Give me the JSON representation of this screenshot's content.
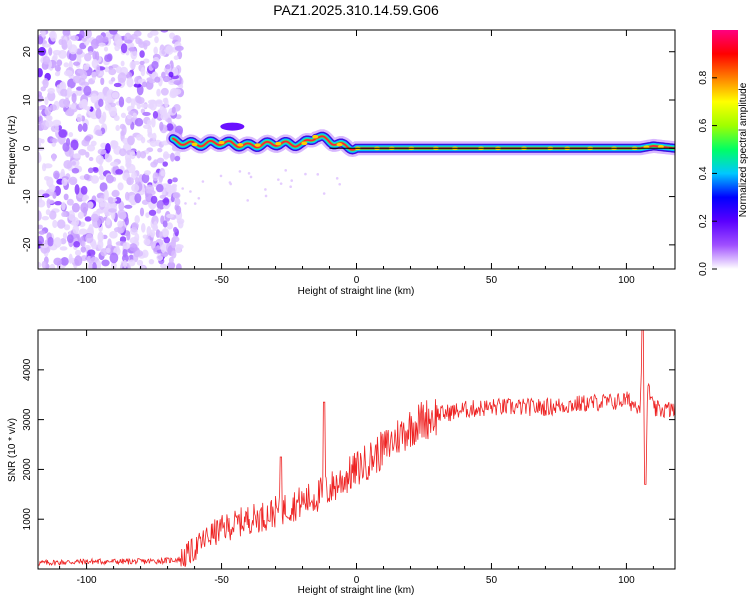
{
  "chart_data": [
    {
      "type": "heatmap",
      "title": "PAZ1.2025.310.14.59.G06",
      "xlabel": "Height of straight line (km)",
      "ylabel": "Frequency (Hz)",
      "xlim": [
        -118,
        118
      ],
      "ylim": [
        -25,
        24.5
      ],
      "xticks": [
        -100,
        -50,
        0,
        50,
        100
      ],
      "yticks": [
        -20,
        -10,
        0,
        10,
        20
      ],
      "colorbar": {
        "label": "Normalized spectral amplitude",
        "range": [
          0,
          1
        ],
        "ticks": [
          0.0,
          0.2,
          0.4,
          0.6,
          0.8
        ],
        "colors": [
          "#ffffff",
          "#a050ff",
          "#5a00ff",
          "#0000ff",
          "#00c8ff",
          "#00ff64",
          "#a0ff00",
          "#ffff00",
          "#ff8000",
          "#ff0000",
          "#ff0080"
        ]
      },
      "ridge": {
        "x": [
          -68,
          -60,
          -50,
          -40,
          -30,
          -20,
          -15,
          -10,
          -5,
          0,
          20,
          50,
          80,
          100,
          105,
          110,
          118
        ],
        "y": [
          1.5,
          0.8,
          1.2,
          0.5,
          1.0,
          0.8,
          2.5,
          1.5,
          0.5,
          0.0,
          0.0,
          0.0,
          0.0,
          0.0,
          0.0,
          0.5,
          0.0
        ]
      },
      "noise_region_x": [
        -118,
        -65
      ]
    },
    {
      "type": "line",
      "xlabel": "Height of straight line (km)",
      "ylabel": "SNR (10 * v/v)",
      "xlim": [
        -118,
        118
      ],
      "ylim": [
        0,
        4800
      ],
      "xticks": [
        -100,
        -50,
        0,
        50,
        100
      ],
      "yticks": [
        1000,
        2000,
        3000,
        4000
      ],
      "series": [
        {
          "color": "#ee2222",
          "x": [
            -118,
            -100,
            -80,
            -70,
            -65,
            -60,
            -55,
            -50,
            -45,
            -40,
            -35,
            -30,
            -25,
            -20,
            -15,
            -12,
            -10,
            -5,
            0,
            5,
            10,
            15,
            20,
            25,
            30,
            40,
            50,
            60,
            70,
            80,
            90,
            95,
            100,
            103,
            105,
            106,
            107,
            108,
            110,
            115,
            118
          ],
          "y": [
            120,
            150,
            150,
            170,
            200,
            400,
            650,
            800,
            900,
            1000,
            1050,
            1150,
            1250,
            1350,
            1450,
            1550,
            1600,
            1800,
            2000,
            2200,
            2400,
            2650,
            2850,
            3000,
            3100,
            3200,
            3250,
            3250,
            3250,
            3300,
            3350,
            3350,
            3400,
            3300,
            3300,
            4700,
            1700,
            3700,
            3200,
            3200,
            3200
          ]
        }
      ],
      "spikes": [
        {
          "x": -12,
          "y": 3350
        },
        {
          "x": -28,
          "y": 2250
        },
        {
          "x": 106,
          "y": 4800
        },
        {
          "x": 107,
          "y": 1700
        }
      ]
    }
  ]
}
